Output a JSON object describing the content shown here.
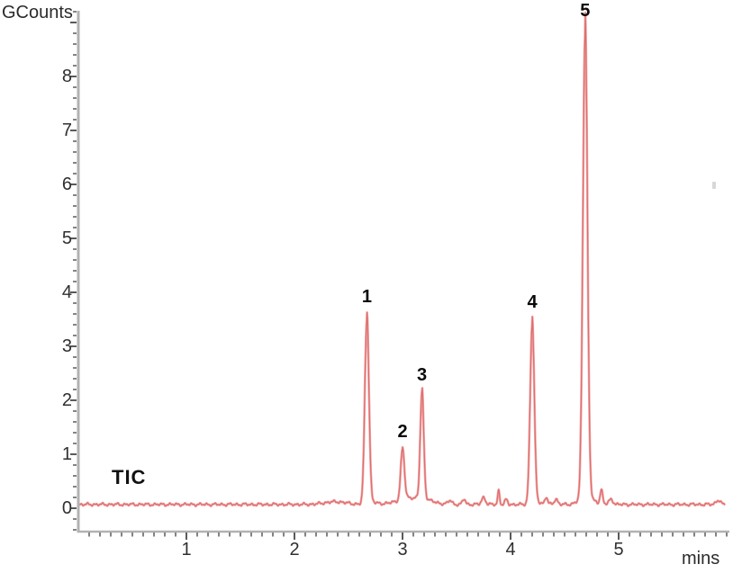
{
  "axes": {
    "y_title": "GCounts",
    "x_title": "mins",
    "y_tick_labels": [
      "0",
      "1",
      "2",
      "3",
      "4",
      "5",
      "6",
      "7",
      "8"
    ],
    "x_tick_labels": [
      "1",
      "2",
      "3",
      "4",
      "5"
    ]
  },
  "trace_label": "TIC",
  "colors": {
    "trace_outer": "#f2a8a8",
    "trace_core": "#dd6e6e",
    "axis_line": "#b2b2b2",
    "tick": "#5a5a5a",
    "text": "#2b2b2b"
  },
  "chart_data": {
    "type": "line",
    "title": "",
    "series_name": "TIC",
    "xlabel": "mins",
    "ylabel": "GCounts",
    "x_range": [
      0,
      6.03
    ],
    "y_range": [
      -0.43,
      9.25
    ],
    "x_major_ticks": [
      1,
      2,
      3,
      4,
      5
    ],
    "y_major_ticks": [
      0,
      1,
      2,
      3,
      4,
      5,
      6,
      7,
      8
    ],
    "x_minor_step": 0.1,
    "y_minor_step": 0.2,
    "grid": false,
    "legend": "none",
    "baseline_gcounts": 0.07,
    "noise_amplitude_gcounts": 0.018,
    "peaks": [
      {
        "label": "1",
        "rt_min": 2.67,
        "apex_gcounts": 3.5,
        "sigma_min": 0.019
      },
      {
        "label": "2",
        "rt_min": 3.0,
        "apex_gcounts": 1.0,
        "sigma_min": 0.017
      },
      {
        "label": "3",
        "rt_min": 3.18,
        "apex_gcounts": 2.05,
        "sigma_min": 0.016
      },
      {
        "label": "4",
        "rt_min": 4.2,
        "apex_gcounts": 3.4,
        "sigma_min": 0.019
      },
      {
        "label": "5",
        "rt_min": 4.69,
        "apex_gcounts": 8.8,
        "sigma_min": 0.021
      }
    ],
    "minor_bumps": [
      {
        "rt_min": 2.38,
        "height_gcounts": 0.05,
        "sigma_min": 0.1
      },
      {
        "rt_min": 3.1,
        "height_gcounts": 0.12,
        "sigma_min": 0.13
      },
      {
        "rt_min": 3.44,
        "height_gcounts": 0.07,
        "sigma_min": 0.018
      },
      {
        "rt_min": 3.57,
        "height_gcounts": 0.1,
        "sigma_min": 0.014
      },
      {
        "rt_min": 3.75,
        "height_gcounts": 0.13,
        "sigma_min": 0.018
      },
      {
        "rt_min": 3.89,
        "height_gcounts": 0.26,
        "sigma_min": 0.009
      },
      {
        "rt_min": 3.96,
        "height_gcounts": 0.09,
        "sigma_min": 0.012
      },
      {
        "rt_min": 4.33,
        "height_gcounts": 0.13,
        "sigma_min": 0.012
      },
      {
        "rt_min": 4.42,
        "height_gcounts": 0.1,
        "sigma_min": 0.016
      },
      {
        "rt_min": 4.62,
        "height_gcounts": 0.05,
        "sigma_min": 0.03
      },
      {
        "rt_min": 4.84,
        "height_gcounts": 0.26,
        "sigma_min": 0.012
      },
      {
        "rt_min": 4.93,
        "height_gcounts": 0.09,
        "sigma_min": 0.02
      },
      {
        "rt_min": 5.92,
        "height_gcounts": 0.08,
        "sigma_min": 0.02
      }
    ]
  }
}
